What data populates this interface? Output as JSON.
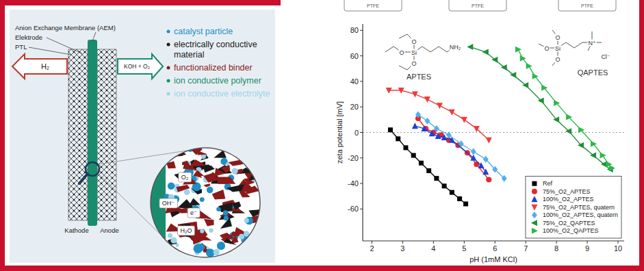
{
  "chart_data": {
    "type": "scatter",
    "x_label": "pH (1mM KCl)",
    "y_label": "zeta potential [mV]",
    "xlim": [
      1.7,
      10.2
    ],
    "ylim": [
      -85,
      85
    ],
    "xticks": [
      2,
      3,
      4,
      5,
      6,
      7,
      8,
      9,
      10
    ],
    "yticks": [
      -60,
      -40,
      -20,
      0,
      20,
      40,
      60,
      80
    ],
    "reference_line": 0,
    "grid": false,
    "legend": "lower right",
    "series": [
      {
        "name": "Ref",
        "color": "#000000",
        "marker": "square",
        "line_style": "solid",
        "x": [
          2.6,
          2.85,
          3.1,
          3.35,
          3.6,
          3.85,
          4.1,
          4.35,
          4.6,
          4.85,
          5.05
        ],
        "values": [
          2,
          -5,
          -12,
          -18,
          -24,
          -30,
          -36,
          -42,
          -47,
          -52,
          -56
        ]
      },
      {
        "name": "75%_O2_APTES",
        "color": "#e8262c",
        "marker": "circle",
        "line_style": "solid",
        "x": [
          3.5,
          3.75,
          4.0,
          4.25,
          4.5,
          4.8,
          5.1,
          5.4,
          5.8
        ],
        "values": [
          11,
          3,
          0,
          -2,
          -6,
          -10,
          -16,
          -25,
          -37
        ]
      },
      {
        "name": "100%_O2_APTES",
        "color": "#1f3fd6",
        "marker": "triangle-up",
        "line_style": "solid",
        "x": [
          3.4,
          3.7,
          3.95,
          4.15,
          4.35,
          4.6,
          5.3,
          5.55,
          5.7
        ],
        "values": [
          5,
          3,
          -1,
          -3,
          -4,
          -6,
          -20,
          -26,
          -31
        ]
      },
      {
        "name": "75%_O2_APTES, quatern",
        "color": "#ef3b3b",
        "marker": "triangle-down",
        "line_style": "solid",
        "x": [
          2.55,
          2.95,
          3.4,
          3.8,
          4.2,
          4.6,
          5.0,
          5.4,
          5.8
        ],
        "values": [
          33,
          33,
          30,
          26,
          21,
          16,
          10,
          3,
          -6
        ]
      },
      {
        "name": "100%_O2_APTES, quatern",
        "color": "#4fb0f0",
        "marker": "diamond",
        "line_style": "solid",
        "x": [
          3.5,
          3.8,
          4.1,
          4.5,
          4.9,
          5.3,
          5.7,
          6.0,
          6.3
        ],
        "values": [
          14,
          9,
          3,
          -2,
          -9,
          -15,
          -21,
          -29,
          -36
        ]
      },
      {
        "name": "75%_O2_QAPTES",
        "color": "#1f8f3a",
        "marker": "triangle-left",
        "line_style": "solid",
        "x": [
          5.2,
          5.7,
          6.0,
          6.3,
          6.6,
          7.0,
          7.5,
          8.0,
          8.4,
          8.8,
          9.2,
          9.55,
          9.75
        ],
        "values": [
          67,
          63,
          57,
          51,
          45,
          37,
          25,
          10,
          1,
          -10,
          -18,
          -25,
          -29
        ]
      },
      {
        "name": "100%_O2_QAPTES",
        "color": "#2cb84c",
        "marker": "triangle-right",
        "line_style": "solid",
        "x": [
          6.75,
          6.9,
          7.1,
          7.3,
          7.6,
          8.0,
          8.4,
          8.8,
          9.2,
          9.5,
          9.7,
          9.8
        ],
        "values": [
          65,
          58,
          52,
          44,
          35,
          23,
          12,
          2,
          -9,
          -18,
          -25,
          -28
        ]
      }
    ]
  },
  "structures": [
    {
      "label": "APTES",
      "atoms": [
        "O",
        "O",
        "O",
        "Si",
        "NH₂"
      ]
    },
    {
      "label": "QAPTES",
      "atoms": [
        "O",
        "O",
        "O",
        "Si",
        "N⁺",
        "Cl⁻"
      ]
    }
  ],
  "header_boxes": [
    "PTFE",
    "PTFE",
    "PTFE"
  ],
  "diagram": {
    "labels": {
      "membrane": "Anion Exchange Membrane (AEM)",
      "electrode": "Elektrode",
      "ptl": "PTL",
      "h2": "H₂",
      "outlet": "KOH + O₂",
      "cathode": "Kathode",
      "anode": "Anode"
    },
    "components": [
      {
        "text": "catalyst particle",
        "color": "#1f8fc6"
      },
      {
        "text": "electrically conductive material",
        "color": "#1a1a1a"
      },
      {
        "text": "functionalized binder",
        "color": "#8b1a1a"
      },
      {
        "text": "ion conductive polymer",
        "color": "#1a8c6e"
      },
      {
        "text": "ion conductive electrolyte",
        "color": "#9dd3ec"
      }
    ],
    "zoom_labels": [
      "OH⁻",
      "e⁻",
      "O₂",
      "H₂O"
    ]
  }
}
